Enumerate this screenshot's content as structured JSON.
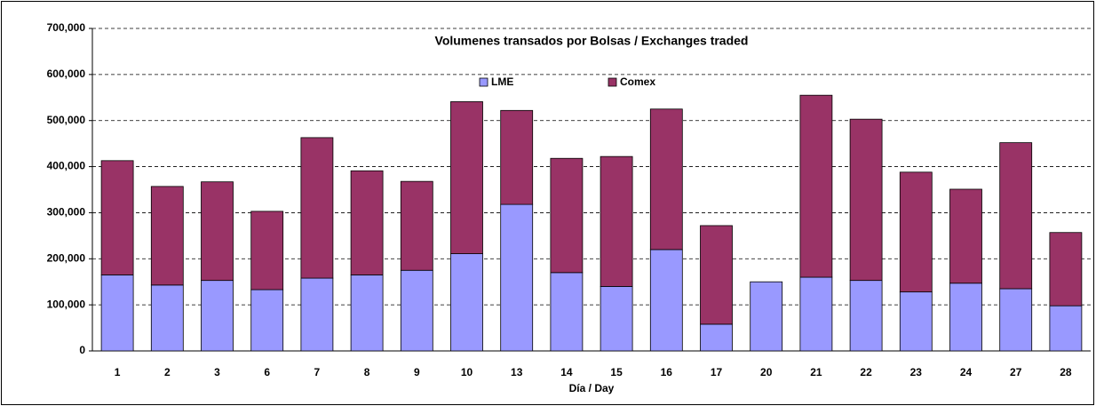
{
  "chart_data": {
    "type": "stacked_bar",
    "title": "Volumenes transados por Bolsas / Exchanges traded",
    "x_label": "Día / Day",
    "categories": [
      "1",
      "2",
      "3",
      "6",
      "7",
      "8",
      "9",
      "10",
      "13",
      "14",
      "15",
      "16",
      "17",
      "20",
      "21",
      "22",
      "23",
      "24",
      "27",
      "28"
    ],
    "series": [
      {
        "name": "LME",
        "color": "#9999ff",
        "values": [
          165000,
          143000,
          153000,
          133000,
          158000,
          165000,
          175000,
          211000,
          318000,
          170000,
          140000,
          220000,
          58000,
          150000,
          160000,
          153000,
          128000,
          147000,
          135000,
          98000
        ]
      },
      {
        "name": "Comex",
        "color": "#993366",
        "values": [
          248000,
          214000,
          214000,
          170000,
          305000,
          226000,
          193000,
          330000,
          204000,
          248000,
          282000,
          305000,
          214000,
          0,
          395000,
          350000,
          260000,
          204000,
          317000,
          159000
        ]
      }
    ],
    "ylim": [
      0,
      700000
    ],
    "yticks": [
      0,
      {
        "value": 100000,
        "label": "100,000"
      },
      {
        "value": 200000,
        "label": "200,000"
      },
      {
        "value": 300000,
        "label": "300,000"
      },
      {
        "value": 400000,
        "label": "400,000"
      },
      {
        "value": 500000,
        "label": "500,000"
      },
      {
        "value": 600000,
        "label": "600,000"
      },
      {
        "value": 700000,
        "label": "700,000"
      }
    ],
    "grid": true,
    "legend": "top"
  }
}
